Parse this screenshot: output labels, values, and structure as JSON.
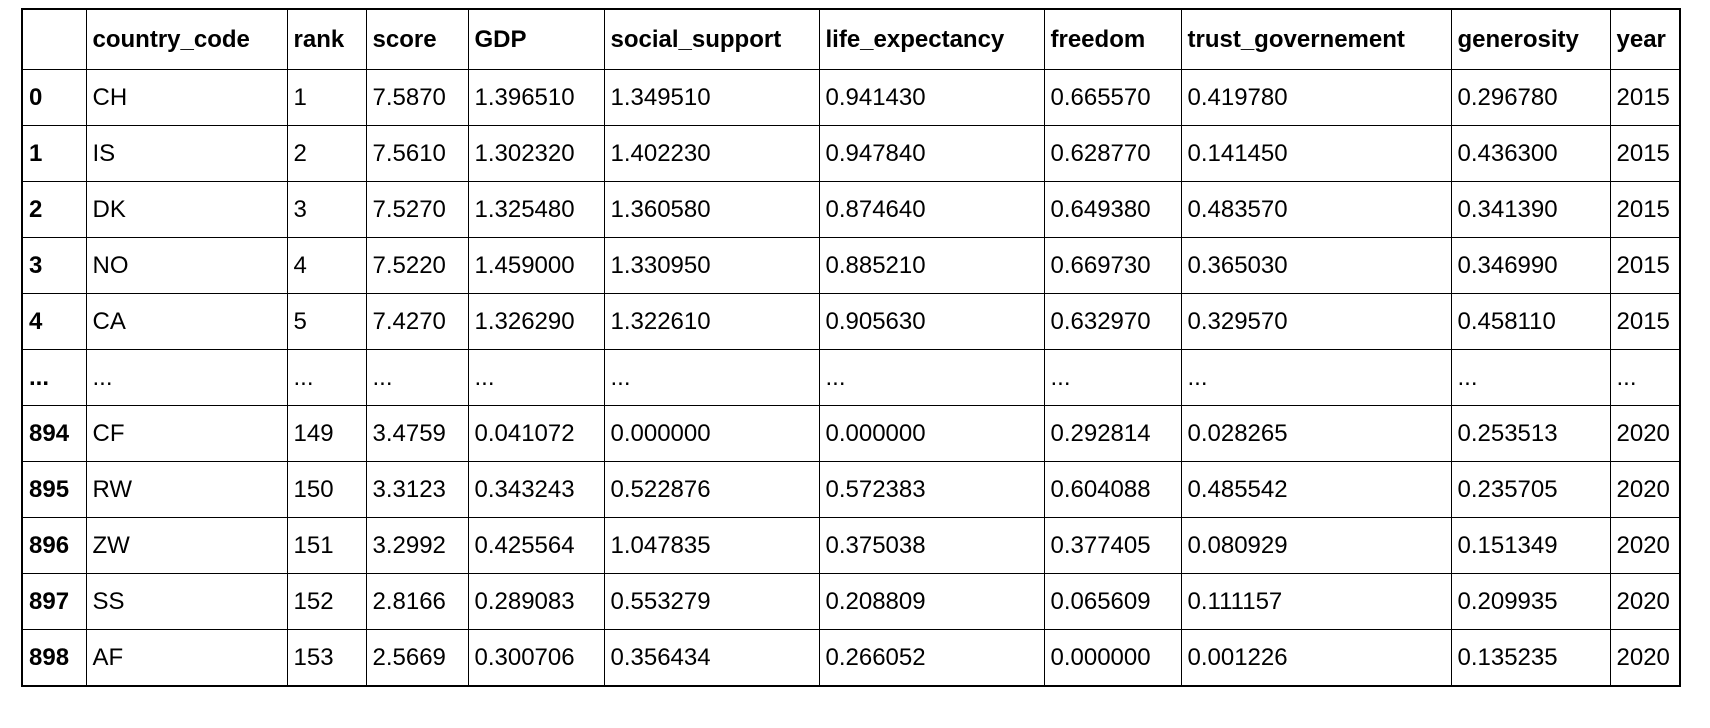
{
  "columns": [
    "",
    "country_code",
    "rank",
    "score",
    "GDP",
    "social_support",
    "life_expectancy",
    "freedom",
    "trust_governement",
    "generosity",
    "year"
  ],
  "rows": [
    [
      "0",
      "CH",
      "1",
      "7.5870",
      "1.396510",
      "1.349510",
      "0.941430",
      "0.665570",
      "0.419780",
      "0.296780",
      "2015"
    ],
    [
      "1",
      "IS",
      "2",
      "7.5610",
      "1.302320",
      "1.402230",
      "0.947840",
      "0.628770",
      "0.141450",
      "0.436300",
      "2015"
    ],
    [
      "2",
      "DK",
      "3",
      "7.5270",
      "1.325480",
      "1.360580",
      "0.874640",
      "0.649380",
      "0.483570",
      "0.341390",
      "2015"
    ],
    [
      "3",
      "NO",
      "4",
      "7.5220",
      "1.459000",
      "1.330950",
      "0.885210",
      "0.669730",
      "0.365030",
      "0.346990",
      "2015"
    ],
    [
      "4",
      "CA",
      "5",
      "7.4270",
      "1.326290",
      "1.322610",
      "0.905630",
      "0.632970",
      "0.329570",
      "0.458110",
      "2015"
    ],
    [
      "...",
      "...",
      "...",
      "...",
      "...",
      "...",
      "...",
      "...",
      "...",
      "...",
      "..."
    ],
    [
      "894",
      "CF",
      "149",
      "3.4759",
      "0.041072",
      "0.000000",
      "0.000000",
      "0.292814",
      "0.028265",
      "0.253513",
      "2020"
    ],
    [
      "895",
      "RW",
      "150",
      "3.3123",
      "0.343243",
      "0.522876",
      "0.572383",
      "0.604088",
      "0.485542",
      "0.235705",
      "2020"
    ],
    [
      "896",
      "ZW",
      "151",
      "3.2992",
      "0.425564",
      "1.047835",
      "0.375038",
      "0.377405",
      "0.080929",
      "0.151349",
      "2020"
    ],
    [
      "897",
      "SS",
      "152",
      "2.8166",
      "0.289083",
      "0.553279",
      "0.208809",
      "0.065609",
      "0.111157",
      "0.209935",
      "2020"
    ],
    [
      "898",
      "AF",
      "153",
      "2.5669",
      "0.300706",
      "0.356434",
      "0.266052",
      "0.000000",
      "0.001226",
      "0.135235",
      "2020"
    ]
  ]
}
